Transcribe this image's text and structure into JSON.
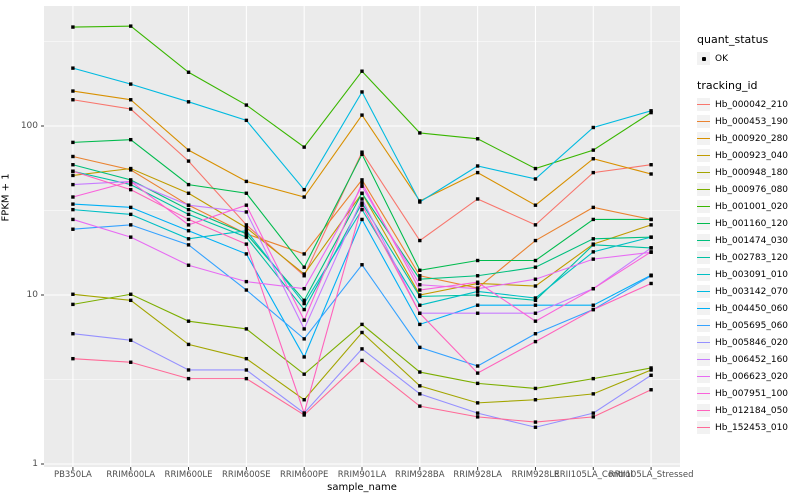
{
  "figure": {
    "background": "#FFFFFF",
    "panel_background": "#EBEBEB",
    "grid_color": "#FFFFFF",
    "axis_text_color": "#4D4D4D",
    "point_color": "#000000"
  },
  "chart_data": {
    "type": "line",
    "title": "",
    "xlabel": "sample_name",
    "ylabel": "FPKM + 1",
    "y_scale": "log10",
    "ylim": [
      0.96,
      510
    ],
    "y_tick_values": [
      1,
      10,
      100
    ],
    "y_tick_labels": [
      "1",
      "10",
      "100"
    ],
    "grid": true,
    "legend_position": "right",
    "legend": {
      "quant_status_title": "quant_status",
      "quant_status_items": [
        {
          "label": "OK",
          "marker": "black-point"
        }
      ],
      "tracking_id_title": "tracking_id"
    },
    "categories": [
      "PB350LA",
      "RRIM600LA",
      "RRIM600LE",
      "RRIM600SE",
      "RRIM600PE",
      "RRIM901LA",
      "RRIM928BA",
      "RRIM928LA",
      "RRIM928LE",
      "RRII105LA_Control",
      "RRII105LA_Stressed"
    ],
    "series": [
      {
        "name": "Hb_000042_210",
        "color": "#F8766D",
        "values": [
          143,
          126,
          62,
          26,
          13,
          70,
          21,
          37,
          26,
          53,
          59
        ]
      },
      {
        "name": "Hb_000453_190",
        "color": "#EA8331",
        "values": [
          66,
          55,
          34,
          23,
          17.5,
          48,
          13,
          11,
          21,
          33,
          28
        ]
      },
      {
        "name": "Hb_000920_280",
        "color": "#D89000",
        "values": [
          161,
          143,
          72,
          47,
          38,
          116,
          36,
          53,
          34,
          64,
          52
        ]
      },
      {
        "name": "Hb_000923_040",
        "color": "#C09B00",
        "values": [
          51,
          56,
          40,
          25,
          13.3,
          40,
          10,
          11.7,
          11.3,
          20,
          26
        ]
      },
      {
        "name": "Hb_000948_180",
        "color": "#A3A500",
        "values": [
          10.1,
          9.3,
          5.1,
          4.2,
          2.4,
          6,
          2.9,
          2.3,
          2.4,
          2.6,
          3.6
        ]
      },
      {
        "name": "Hb_000976_080",
        "color": "#7CAE00",
        "values": [
          8.8,
          10.1,
          7,
          6.3,
          3.4,
          6.7,
          3.5,
          3,
          2.8,
          3.2,
          3.7
        ]
      },
      {
        "name": "Hb_001001_020",
        "color": "#39B600",
        "values": [
          385,
          390,
          208,
          133,
          75,
          211,
          91,
          84,
          56,
          72,
          120
        ]
      },
      {
        "name": "Hb_001160_120",
        "color": "#00BB4E",
        "values": [
          80,
          83,
          45,
          40,
          14.6,
          68,
          14,
          16,
          16,
          28,
          28
        ]
      },
      {
        "name": "Hb_001474_030",
        "color": "#00BF7D",
        "values": [
          59,
          48,
          32,
          23,
          9.3,
          40,
          12.4,
          13,
          14.6,
          21.5,
          22
        ]
      },
      {
        "name": "Hb_002783_120",
        "color": "#00C1A3",
        "values": [
          54,
          45,
          30,
          22,
          8.2,
          35,
          9.8,
          10,
          9.3,
          19.8,
          19
        ]
      },
      {
        "name": "Hb_003091_010",
        "color": "#00BFC4",
        "values": [
          32,
          30,
          21.5,
          24,
          8.9,
          32,
          8.7,
          10.5,
          9.6,
          18,
          22
        ]
      },
      {
        "name": "Hb_003142_070",
        "color": "#00BAE0",
        "values": [
          220,
          177,
          139,
          108,
          42,
          159,
          35.5,
          58,
          48.6,
          98,
          123
        ]
      },
      {
        "name": "Hb_004450_060",
        "color": "#00B0F6",
        "values": [
          34.5,
          33,
          24,
          17.5,
          4.3,
          28,
          6.7,
          8.7,
          8.7,
          8.7,
          13.1
        ]
      },
      {
        "name": "Hb_005695_060",
        "color": "#35A2FF",
        "values": [
          24.5,
          26,
          19.8,
          10.7,
          5.5,
          15.1,
          4.9,
          3.8,
          5.9,
          8.2,
          13
        ]
      },
      {
        "name": "Hb_005846_020",
        "color": "#9590FF",
        "values": [
          5.9,
          5.4,
          3.6,
          3.6,
          2,
          4.8,
          2.6,
          2,
          1.65,
          2,
          3.35
        ]
      },
      {
        "name": "Hb_006452_160",
        "color": "#C77CFF",
        "values": [
          45,
          47,
          34,
          31,
          6.3,
          37,
          7.8,
          7.8,
          7.8,
          10.9,
          19
        ]
      },
      {
        "name": "Hb_006623_020",
        "color": "#E76BF3",
        "values": [
          28,
          22,
          15,
          12,
          10.9,
          44,
          11.5,
          10.9,
          12.4,
          16.3,
          17.9
        ]
      },
      {
        "name": "Hb_007951_100",
        "color": "#FA62DB",
        "values": [
          38,
          47,
          26,
          34,
          7.1,
          46,
          10.7,
          11.9,
          7,
          10.9,
          18
        ]
      },
      {
        "name": "Hb_012184_050",
        "color": "#FF62BC",
        "values": [
          54,
          42,
          28,
          20,
          2,
          34,
          7.8,
          3.45,
          5.3,
          8.2,
          11.7
        ]
      },
      {
        "name": "Hb_152453_010",
        "color": "#FF6A98",
        "values": [
          4.2,
          4,
          3.2,
          3.2,
          1.95,
          4.1,
          2.2,
          1.9,
          1.77,
          1.9,
          2.75
        ]
      }
    ]
  }
}
